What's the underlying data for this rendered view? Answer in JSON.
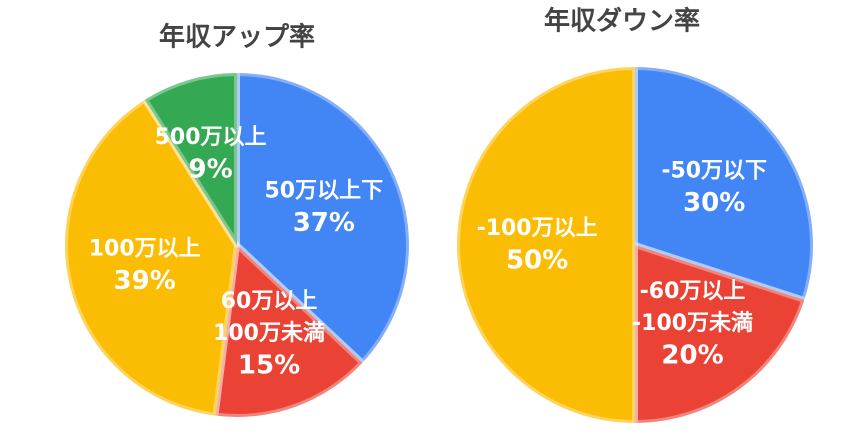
{
  "chart_data": [
    {
      "type": "pie",
      "title": "年収アップ率",
      "categories": [
        [
          "50万以上下"
        ],
        [
          "60万以上",
          "100万未満"
        ],
        [
          "100万以上"
        ],
        [
          "500万以上"
        ]
      ],
      "values": [
        37,
        15,
        39,
        9
      ],
      "value_labels": [
        "37%",
        "15%",
        "39%",
        "9%"
      ],
      "colors": [
        "#4285f4",
        "#ea4335",
        "#fbbc04",
        "#34a853"
      ]
    },
    {
      "type": "pie",
      "title": "年収ダウン率",
      "categories": [
        [
          "-50万以下"
        ],
        [
          "-60万以上",
          "-100万未満"
        ],
        [
          "-100万以上"
        ]
      ],
      "values": [
        30,
        20,
        50
      ],
      "value_labels": [
        "30%",
        "20%",
        "50%"
      ],
      "colors": [
        "#4285f4",
        "#ea4335",
        "#fbbc04"
      ]
    }
  ]
}
